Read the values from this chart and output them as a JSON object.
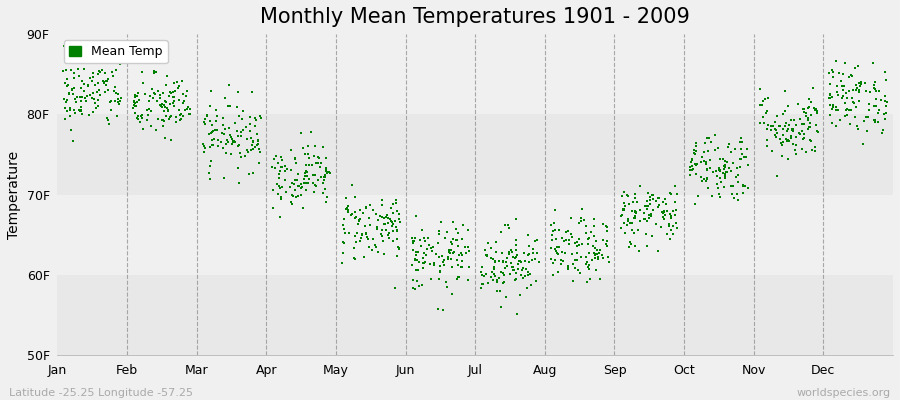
{
  "title": "Monthly Mean Temperatures 1901 - 2009",
  "ylabel": "Temperature",
  "ylim": [
    50,
    90
  ],
  "yticks": [
    50,
    60,
    70,
    80,
    90
  ],
  "ytick_labels": [
    "50F",
    "60F",
    "70F",
    "80F",
    "90F"
  ],
  "months": [
    "Jan",
    "Feb",
    "Mar",
    "Apr",
    "May",
    "Jun",
    "Jul",
    "Aug",
    "Sep",
    "Oct",
    "Nov",
    "Dec"
  ],
  "month_mean_temps_f": [
    82.5,
    81.0,
    77.5,
    72.5,
    66.0,
    62.0,
    61.5,
    63.0,
    67.5,
    73.5,
    78.5,
    82.0
  ],
  "month_std_temps_f": [
    2.2,
    2.0,
    2.2,
    2.0,
    2.2,
    2.2,
    2.2,
    2.0,
    2.0,
    2.2,
    2.2,
    2.2
  ],
  "n_years": 109,
  "start_year": 1901,
  "end_year": 2009,
  "dot_color": "#008000",
  "dot_size": 3,
  "background_color": "#f0f0f0",
  "band_colors": [
    "#e8e8e8",
    "#f0f0f0"
  ],
  "title_fontsize": 15,
  "axis_label_fontsize": 10,
  "tick_fontsize": 9,
  "legend_label": "Mean Temp",
  "footer_left": "Latitude -25.25 Longitude -57.25",
  "footer_right": "worldspecies.org",
  "footer_fontsize": 8,
  "vline_color": "#888888",
  "seed": 42
}
